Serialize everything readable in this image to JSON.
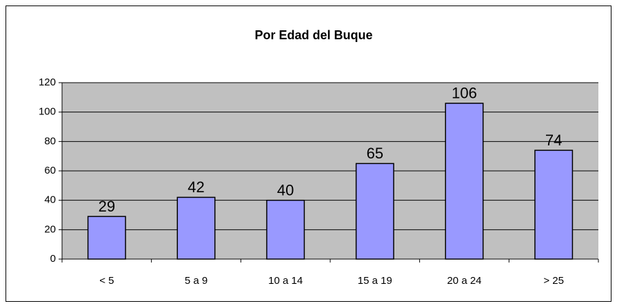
{
  "chart_data": {
    "type": "bar",
    "title": "Por Edad del Buque",
    "categories": [
      "< 5",
      "5 a 9",
      "10 a 14",
      "15 a 19",
      "20 a 24",
      "> 25"
    ],
    "values": [
      29,
      42,
      40,
      65,
      106,
      74
    ],
    "color": "#9999ff",
    "ylim": [
      0,
      120
    ],
    "yticks": [
      0,
      20,
      40,
      60,
      80,
      100,
      120
    ],
    "grid": true
  }
}
